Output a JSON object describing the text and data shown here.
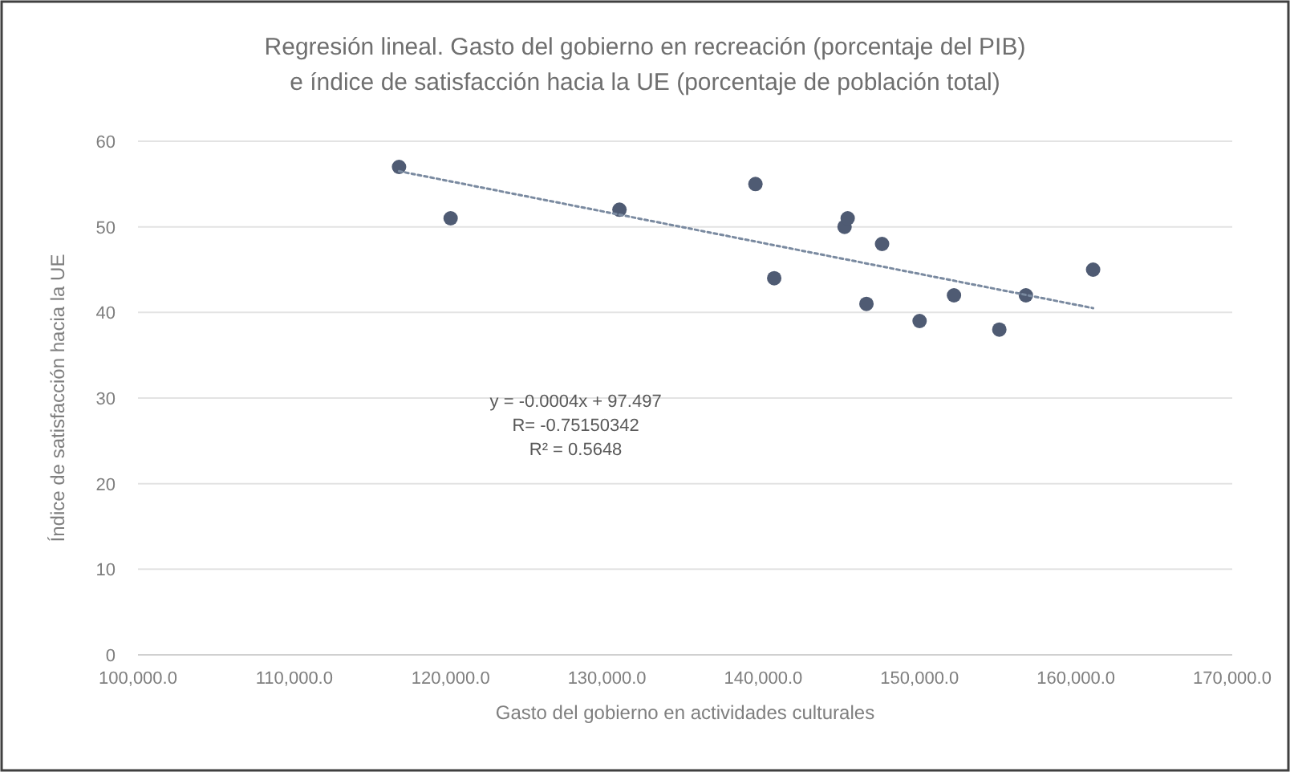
{
  "chart_data": {
    "type": "scatter",
    "title": "Regresión lineal. Gasto del gobierno en recreación (porcentaje del PIB)\ne índice de satisfacción hacia la UE (porcentaje de población total)",
    "xlabel": "Gasto del gobierno en actividades culturales",
    "ylabel": "Índice de satisfacción hacia la UE",
    "series": [
      {
        "color": "#4f5b73",
        "marker": "circle",
        "x": [
          116700,
          120000,
          130800,
          139500,
          140700,
          145200,
          145400,
          147600,
          146600,
          150000,
          152200,
          155100,
          156800,
          161100
        ],
        "values": [
          57,
          51,
          52,
          55,
          44,
          50,
          51,
          48,
          41,
          39,
          42,
          38,
          42,
          45
        ]
      },
      {
        "type": "line",
        "color": "#7a8aa0",
        "line_style": "dotted",
        "marker": "none",
        "x": [
          116700,
          161100
        ],
        "values": [
          56.5,
          40.5
        ]
      }
    ],
    "xlim": [
      100000,
      170000
    ],
    "xticks": [
      {
        "value": 100000,
        "label": "100,000.0"
      },
      {
        "value": 110000,
        "label": "110,000.0"
      },
      {
        "value": 120000,
        "label": "120,000.0"
      },
      {
        "value": 130000,
        "label": "130,000.0"
      },
      {
        "value": 140000,
        "label": "140,000.0"
      },
      {
        "value": 150000,
        "label": "150,000.0"
      },
      {
        "value": 160000,
        "label": "160,000.0"
      },
      {
        "value": 170000,
        "label": "170,000.0"
      }
    ],
    "ylim": [
      0,
      60
    ],
    "yticks": [
      0,
      10,
      20,
      30,
      40,
      50,
      60
    ],
    "grid": "y",
    "annotations": [
      "y = -0.0004x + 97.497",
      "R= -0.75150342",
      "R² = 0.5648"
    ]
  }
}
